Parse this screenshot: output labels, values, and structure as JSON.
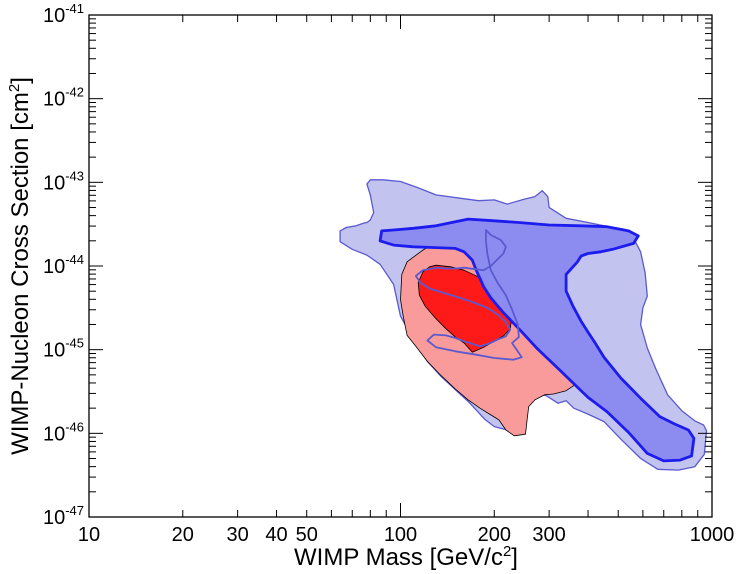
{
  "chart_data": {
    "type": "area",
    "title": "",
    "xlabel": {
      "text": "WIMP Mass [GeV/c",
      "sup": "2",
      "tail": "]"
    },
    "ylabel": {
      "text": "WIMP-Nucleon Cross Section [cm",
      "sup": "2",
      "tail": "]"
    },
    "xscale": "log",
    "yscale": "log",
    "xlim": [
      10,
      1000
    ],
    "ylim": [
      1e-47,
      1e-41
    ],
    "grid": false,
    "legend": "none",
    "x_ticks": [
      {
        "value": 10,
        "label": "10"
      },
      {
        "value": 20,
        "label": "20"
      },
      {
        "value": 30,
        "label": "30"
      },
      {
        "value": 40,
        "label": "40"
      },
      {
        "value": 50,
        "label": "50"
      },
      {
        "value": 100,
        "label": "100"
      },
      {
        "value": 200,
        "label": "200"
      },
      {
        "value": 300,
        "label": "300"
      },
      {
        "value": 1000,
        "label": "1000"
      }
    ],
    "y_ticks": [
      {
        "value": -47,
        "base": "10",
        "exp": "-47"
      },
      {
        "value": -46,
        "base": "10",
        "exp": "-46"
      },
      {
        "value": -45,
        "base": "10",
        "exp": "-45"
      },
      {
        "value": -44,
        "base": "10",
        "exp": "-44"
      },
      {
        "value": -43,
        "base": "10",
        "exp": "-43"
      },
      {
        "value": -42,
        "base": "10",
        "exp": "-42"
      },
      {
        "value": -41,
        "base": "10",
        "exp": "-41"
      }
    ],
    "series": [
      {
        "id": "blue-outer",
        "fill": "#c3c3f0",
        "stroke": "#5a5ad0",
        "stroke_width": 1.3,
        "points": [
          [
            64,
            -43.58
          ],
          [
            67,
            -43.54
          ],
          [
            72,
            -43.52
          ],
          [
            76,
            -43.49
          ],
          [
            78,
            -43.48
          ],
          [
            80,
            -43.45
          ],
          [
            82,
            -43.36
          ],
          [
            80,
            -43.15
          ],
          [
            78,
            -43.02
          ],
          [
            80,
            -42.97
          ],
          [
            88,
            -42.97
          ],
          [
            100,
            -42.99
          ],
          [
            113,
            -43.06
          ],
          [
            130,
            -43.15
          ],
          [
            155,
            -43.19
          ],
          [
            178,
            -43.22
          ],
          [
            200,
            -43.21
          ],
          [
            220,
            -43.26
          ],
          [
            250,
            -43.2
          ],
          [
            270,
            -43.17
          ],
          [
            285,
            -43.1
          ],
          [
            297,
            -43.17
          ],
          [
            300,
            -43.3
          ],
          [
            340,
            -43.43
          ],
          [
            400,
            -43.48
          ],
          [
            450,
            -43.52
          ],
          [
            520,
            -43.56
          ],
          [
            560,
            -43.67
          ],
          [
            590,
            -43.83
          ],
          [
            610,
            -44.08
          ],
          [
            620,
            -44.36
          ],
          [
            600,
            -44.5
          ],
          [
            590,
            -44.7
          ],
          [
            620,
            -44.98
          ],
          [
            660,
            -45.23
          ],
          [
            720,
            -45.54
          ],
          [
            800,
            -45.73
          ],
          [
            880,
            -45.85
          ],
          [
            940,
            -45.9
          ],
          [
            960,
            -45.97
          ],
          [
            945,
            -46.25
          ],
          [
            880,
            -46.4
          ],
          [
            780,
            -46.44
          ],
          [
            670,
            -46.43
          ],
          [
            590,
            -46.3
          ],
          [
            510,
            -46.07
          ],
          [
            450,
            -45.86
          ],
          [
            400,
            -45.77
          ],
          [
            360,
            -45.7
          ],
          [
            340,
            -45.61
          ],
          [
            320,
            -45.64
          ],
          [
            300,
            -45.57
          ],
          [
            290,
            -45.54
          ],
          [
            270,
            -45.59
          ],
          [
            255,
            -45.66
          ],
          [
            250,
            -45.84
          ],
          [
            220,
            -45.96
          ],
          [
            200,
            -45.92
          ],
          [
            186,
            -45.83
          ],
          [
            175,
            -45.72
          ],
          [
            165,
            -45.62
          ],
          [
            150,
            -45.48
          ],
          [
            135,
            -45.32
          ],
          [
            122,
            -45.14
          ],
          [
            110,
            -44.88
          ],
          [
            100,
            -44.6
          ],
          [
            95,
            -44.22
          ],
          [
            86,
            -43.98
          ],
          [
            78,
            -43.87
          ],
          [
            70,
            -43.8
          ],
          [
            64,
            -43.71
          ]
        ]
      },
      {
        "id": "red-outer",
        "fill": "#f99b9b",
        "stroke": "#000000",
        "stroke_width": 0.8,
        "points": [
          [
            150,
            -43.61
          ],
          [
            180,
            -43.62
          ],
          [
            200,
            -43.65
          ],
          [
            210,
            -43.55
          ],
          [
            218,
            -43.57
          ],
          [
            225,
            -43.68
          ],
          [
            232,
            -43.82
          ],
          [
            240,
            -43.87
          ],
          [
            258,
            -44.0
          ],
          [
            264,
            -44.12
          ],
          [
            278,
            -44.22
          ],
          [
            290,
            -44.35
          ],
          [
            303,
            -44.52
          ],
          [
            322,
            -44.68
          ],
          [
            342,
            -44.8
          ],
          [
            360,
            -44.89
          ],
          [
            378,
            -44.99
          ],
          [
            388,
            -45.08
          ],
          [
            395,
            -45.21
          ],
          [
            400,
            -45.3
          ],
          [
            380,
            -45.38
          ],
          [
            360,
            -45.43
          ],
          [
            340,
            -45.49
          ],
          [
            310,
            -45.53
          ],
          [
            290,
            -45.54
          ],
          [
            270,
            -45.6
          ],
          [
            258,
            -45.68
          ],
          [
            255,
            -45.84
          ],
          [
            252,
            -46.01
          ],
          [
            232,
            -46.03
          ],
          [
            218,
            -45.96
          ],
          [
            207,
            -45.84
          ],
          [
            195,
            -45.78
          ],
          [
            180,
            -45.7
          ],
          [
            165,
            -45.6
          ],
          [
            150,
            -45.47
          ],
          [
            135,
            -45.31
          ],
          [
            122,
            -45.14
          ],
          [
            112,
            -44.96
          ],
          [
            105,
            -44.83
          ],
          [
            102,
            -44.6
          ],
          [
            100,
            -44.4
          ],
          [
            101,
            -44.1
          ],
          [
            105,
            -43.95
          ],
          [
            117,
            -43.82
          ],
          [
            128,
            -43.73
          ],
          [
            138,
            -43.66
          ]
        ]
      },
      {
        "id": "red-inner",
        "fill": "#ff1a1a",
        "stroke": "#000000",
        "stroke_width": 0.8,
        "points": [
          [
            130,
            -43.99
          ],
          [
            145,
            -44.01
          ],
          [
            160,
            -44.05
          ],
          [
            180,
            -44.14
          ],
          [
            200,
            -44.25
          ],
          [
            215,
            -44.35
          ],
          [
            225,
            -44.48
          ],
          [
            228,
            -44.6
          ],
          [
            225,
            -44.75
          ],
          [
            215,
            -44.83
          ],
          [
            200,
            -44.9
          ],
          [
            185,
            -44.97
          ],
          [
            170,
            -45.03
          ],
          [
            160,
            -44.92
          ],
          [
            150,
            -44.85
          ],
          [
            140,
            -44.75
          ],
          [
            130,
            -44.63
          ],
          [
            120,
            -44.48
          ],
          [
            115,
            -44.35
          ],
          [
            114,
            -44.2
          ],
          [
            118,
            -44.07
          ],
          [
            124,
            -44.01
          ]
        ]
      },
      {
        "id": "blue-mid",
        "fill": "#8c8cf0",
        "stroke": "#1c1cee",
        "stroke_width": 2.8,
        "points": [
          [
            87,
            -43.58
          ],
          [
            95,
            -43.57
          ],
          [
            110,
            -43.55
          ],
          [
            130,
            -43.52
          ],
          [
            150,
            -43.47
          ],
          [
            165,
            -43.44
          ],
          [
            200,
            -43.46
          ],
          [
            240,
            -43.48
          ],
          [
            300,
            -43.51
          ],
          [
            380,
            -43.52
          ],
          [
            460,
            -43.53
          ],
          [
            540,
            -43.58
          ],
          [
            580,
            -43.64
          ],
          [
            560,
            -43.73
          ],
          [
            480,
            -43.8
          ],
          [
            440,
            -43.83
          ],
          [
            400,
            -43.85
          ],
          [
            380,
            -43.88
          ],
          [
            370,
            -43.95
          ],
          [
            340,
            -44.1
          ],
          [
            340,
            -44.3
          ],
          [
            358,
            -44.48
          ],
          [
            380,
            -44.66
          ],
          [
            400,
            -44.79
          ],
          [
            420,
            -44.91
          ],
          [
            450,
            -45.09
          ],
          [
            510,
            -45.34
          ],
          [
            590,
            -45.58
          ],
          [
            680,
            -45.8
          ],
          [
            760,
            -45.89
          ],
          [
            840,
            -45.96
          ],
          [
            875,
            -46.06
          ],
          [
            860,
            -46.27
          ],
          [
            790,
            -46.32
          ],
          [
            700,
            -46.33
          ],
          [
            620,
            -46.24
          ],
          [
            540,
            -45.99
          ],
          [
            460,
            -45.74
          ],
          [
            400,
            -45.57
          ],
          [
            330,
            -45.27
          ],
          [
            275,
            -44.99
          ],
          [
            240,
            -44.75
          ],
          [
            213,
            -44.55
          ],
          [
            195,
            -44.38
          ],
          [
            185,
            -44.25
          ],
          [
            180,
            -44.15
          ],
          [
            175,
            -44.05
          ],
          [
            170,
            -43.93
          ],
          [
            160,
            -43.83
          ],
          [
            150,
            -43.79
          ],
          [
            130,
            -43.78
          ],
          [
            110,
            -43.77
          ],
          [
            95,
            -43.75
          ],
          [
            86,
            -43.7
          ]
        ]
      }
    ],
    "contours": [
      {
        "id": "blue-inner-contour",
        "stroke": "#5a5ad0",
        "stroke_width": 1.8,
        "points": [
          [
            188,
            -43.57
          ],
          [
            195,
            -43.63
          ],
          [
            210,
            -43.69
          ],
          [
            218,
            -43.77
          ],
          [
            214,
            -43.85
          ],
          [
            205,
            -43.92
          ],
          [
            195,
            -44.0
          ],
          [
            185,
            -44.05
          ],
          [
            175,
            -44.04
          ],
          [
            160,
            -44.02
          ],
          [
            150,
            -44.03
          ],
          [
            140,
            -44.03
          ],
          [
            130,
            -44.02
          ],
          [
            118,
            -44.05
          ],
          [
            112,
            -44.12
          ],
          [
            116,
            -44.2
          ],
          [
            124,
            -44.27
          ],
          [
            132,
            -44.3
          ],
          [
            140,
            -44.33
          ],
          [
            155,
            -44.38
          ],
          [
            170,
            -44.43
          ],
          [
            190,
            -44.5
          ],
          [
            205,
            -44.58
          ],
          [
            218,
            -44.67
          ],
          [
            225,
            -44.76
          ],
          [
            218,
            -44.84
          ],
          [
            205,
            -44.88
          ],
          [
            192,
            -44.93
          ],
          [
            180,
            -44.96
          ],
          [
            170,
            -44.93
          ],
          [
            160,
            -44.9
          ],
          [
            150,
            -44.86
          ],
          [
            140,
            -44.83
          ],
          [
            128,
            -44.82
          ],
          [
            122,
            -44.89
          ],
          [
            130,
            -44.97
          ],
          [
            150,
            -45.02
          ],
          [
            175,
            -45.06
          ],
          [
            200,
            -45.1
          ],
          [
            230,
            -45.12
          ],
          [
            245,
            -45.09
          ],
          [
            236,
            -45.0
          ],
          [
            228,
            -44.92
          ],
          [
            240,
            -44.85
          ],
          [
            238,
            -44.7
          ],
          [
            228,
            -44.52
          ],
          [
            218,
            -44.35
          ],
          [
            205,
            -44.2
          ],
          [
            195,
            -44.05
          ],
          [
            190,
            -43.85
          ],
          [
            188,
            -43.7
          ]
        ]
      }
    ]
  }
}
